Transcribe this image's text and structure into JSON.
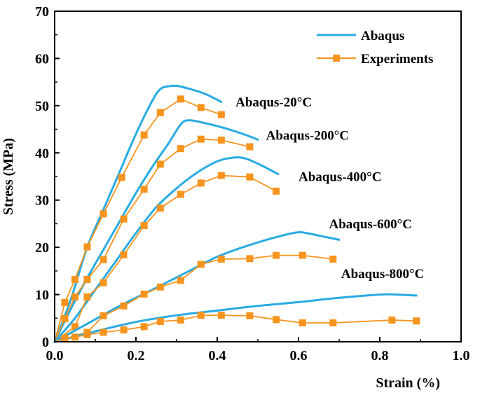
{
  "chart_data": {
    "type": "line",
    "title": "",
    "xlabel": "Strain (%)",
    "ylabel": "Stress (MPa)",
    "xlim": [
      0.0,
      1.0
    ],
    "ylim": [
      0,
      70
    ],
    "xticks": [
      "0.0",
      "0.2",
      "0.4",
      "0.6",
      "0.8",
      "1.0"
    ],
    "yticks": [
      "0",
      "10",
      "20",
      "30",
      "40",
      "50",
      "60",
      "70"
    ],
    "xtick_values": [
      0.0,
      0.2,
      0.4,
      0.6,
      0.8,
      1.0
    ],
    "ytick_values": [
      0,
      10,
      20,
      30,
      40,
      50,
      60,
      70
    ],
    "legend": {
      "position": "top-right",
      "entries": [
        {
          "label": "Abaqus",
          "style": "line",
          "color": "#29ABE2"
        },
        {
          "label": "Experiments",
          "style": "line-square",
          "color": "#F7941D"
        }
      ]
    },
    "series": [
      {
        "name": "Abaqus-20°C",
        "kind": "abaqus",
        "x": [
          0.0,
          0.04,
          0.08,
          0.12,
          0.16,
          0.2,
          0.24,
          0.26,
          0.28,
          0.3,
          0.33,
          0.37,
          0.41
        ],
        "y": [
          0,
          9,
          20,
          28,
          36,
          44,
          51,
          53.5,
          54.1,
          54.2,
          53.6,
          52.5,
          50.8
        ]
      },
      {
        "name": "Experiments-20°C",
        "kind": "experiments",
        "x": [
          0.0,
          0.025,
          0.05,
          0.08,
          0.12,
          0.165,
          0.22,
          0.26,
          0.31,
          0.36,
          0.41
        ],
        "y": [
          0,
          8.3,
          13.2,
          20.1,
          27.1,
          34.8,
          43.8,
          48.5,
          51.4,
          49.6,
          48.1
        ]
      },
      {
        "name": "Abaqus-200°C",
        "kind": "abaqus",
        "x": [
          0.0,
          0.04,
          0.08,
          0.12,
          0.16,
          0.2,
          0.24,
          0.28,
          0.31,
          0.33,
          0.37,
          0.42,
          0.47,
          0.5
        ],
        "y": [
          0,
          7,
          13.5,
          19.5,
          25.5,
          31.5,
          37,
          42,
          46,
          46.9,
          46.3,
          45.2,
          43.8,
          42.8
        ]
      },
      {
        "name": "Experiments-200°C",
        "kind": "experiments",
        "x": [
          0.0,
          0.025,
          0.05,
          0.08,
          0.12,
          0.17,
          0.22,
          0.26,
          0.31,
          0.36,
          0.41,
          0.48
        ],
        "y": [
          0,
          4.9,
          9.5,
          13.2,
          17.4,
          26.0,
          32.3,
          37.6,
          40.9,
          42.9,
          42.7,
          41.3
        ]
      },
      {
        "name": "Abaqus-400°C",
        "kind": "abaqus",
        "x": [
          0.0,
          0.05,
          0.1,
          0.15,
          0.2,
          0.25,
          0.3,
          0.35,
          0.4,
          0.44,
          0.47,
          0.51,
          0.55
        ],
        "y": [
          0,
          5,
          11,
          17,
          23,
          28.5,
          32.5,
          35.8,
          38.2,
          39.0,
          38.8,
          37.3,
          35.5
        ]
      },
      {
        "name": "Experiments-400°C",
        "kind": "experiments",
        "x": [
          0.0,
          0.05,
          0.08,
          0.12,
          0.17,
          0.22,
          0.26,
          0.31,
          0.36,
          0.41,
          0.48,
          0.545
        ],
        "y": [
          0,
          3.2,
          9.5,
          12.5,
          18.4,
          24.6,
          28.3,
          31.2,
          33.6,
          35.2,
          34.9,
          31.9
        ]
      },
      {
        "name": "Abaqus-600°C",
        "kind": "abaqus",
        "x": [
          0.0,
          0.08,
          0.16,
          0.24,
          0.32,
          0.4,
          0.48,
          0.56,
          0.6,
          0.62,
          0.66,
          0.7
        ],
        "y": [
          0,
          3.8,
          7.6,
          11,
          14.5,
          18,
          20.5,
          22.5,
          23.2,
          23.0,
          22.3,
          21.6
        ]
      },
      {
        "name": "Experiments-600°C",
        "kind": "experiments",
        "x": [
          0.0,
          0.08,
          0.12,
          0.17,
          0.22,
          0.26,
          0.31,
          0.36,
          0.41,
          0.48,
          0.545,
          0.61,
          0.685
        ],
        "y": [
          0,
          2.0,
          5.5,
          7.6,
          10.1,
          11.6,
          13.0,
          16.4,
          17.5,
          17.6,
          18.3,
          18.3,
          17.5
        ]
      },
      {
        "name": "Abaqus-800°C",
        "kind": "abaqus",
        "x": [
          0.0,
          0.1,
          0.2,
          0.3,
          0.4,
          0.5,
          0.6,
          0.7,
          0.8,
          0.84,
          0.89
        ],
        "y": [
          0,
          2.2,
          4.2,
          5.6,
          6.6,
          7.6,
          8.4,
          9.3,
          10.0,
          10.0,
          9.8
        ]
      },
      {
        "name": "Experiments-800°C",
        "kind": "experiments",
        "x": [
          0.0,
          0.025,
          0.05,
          0.08,
          0.12,
          0.17,
          0.22,
          0.26,
          0.31,
          0.36,
          0.41,
          0.48,
          0.545,
          0.61,
          0.685,
          0.83,
          0.89
        ],
        "y": [
          0,
          0.8,
          1.0,
          1.5,
          2.0,
          2.5,
          3.2,
          4.3,
          4.6,
          5.6,
          5.6,
          5.5,
          4.7,
          4.0,
          4.0,
          4.6,
          4.4
        ]
      }
    ],
    "annotations": [
      {
        "text": "Abaqus-20°C",
        "x": 0.445,
        "y": 49.8
      },
      {
        "text": "Abaqus-200°C",
        "x": 0.52,
        "y": 42.8
      },
      {
        "text": "Abaqus-400°C",
        "x": 0.6,
        "y": 34.0
      },
      {
        "text": "Abaqus-600°C",
        "x": 0.675,
        "y": 24.0
      },
      {
        "text": "Abaqus-800°C",
        "x": 0.705,
        "y": 13.5
      }
    ]
  },
  "colors": {
    "abaqus": "#29ABE2",
    "experiments": "#F7941D",
    "axis": "#000000"
  }
}
